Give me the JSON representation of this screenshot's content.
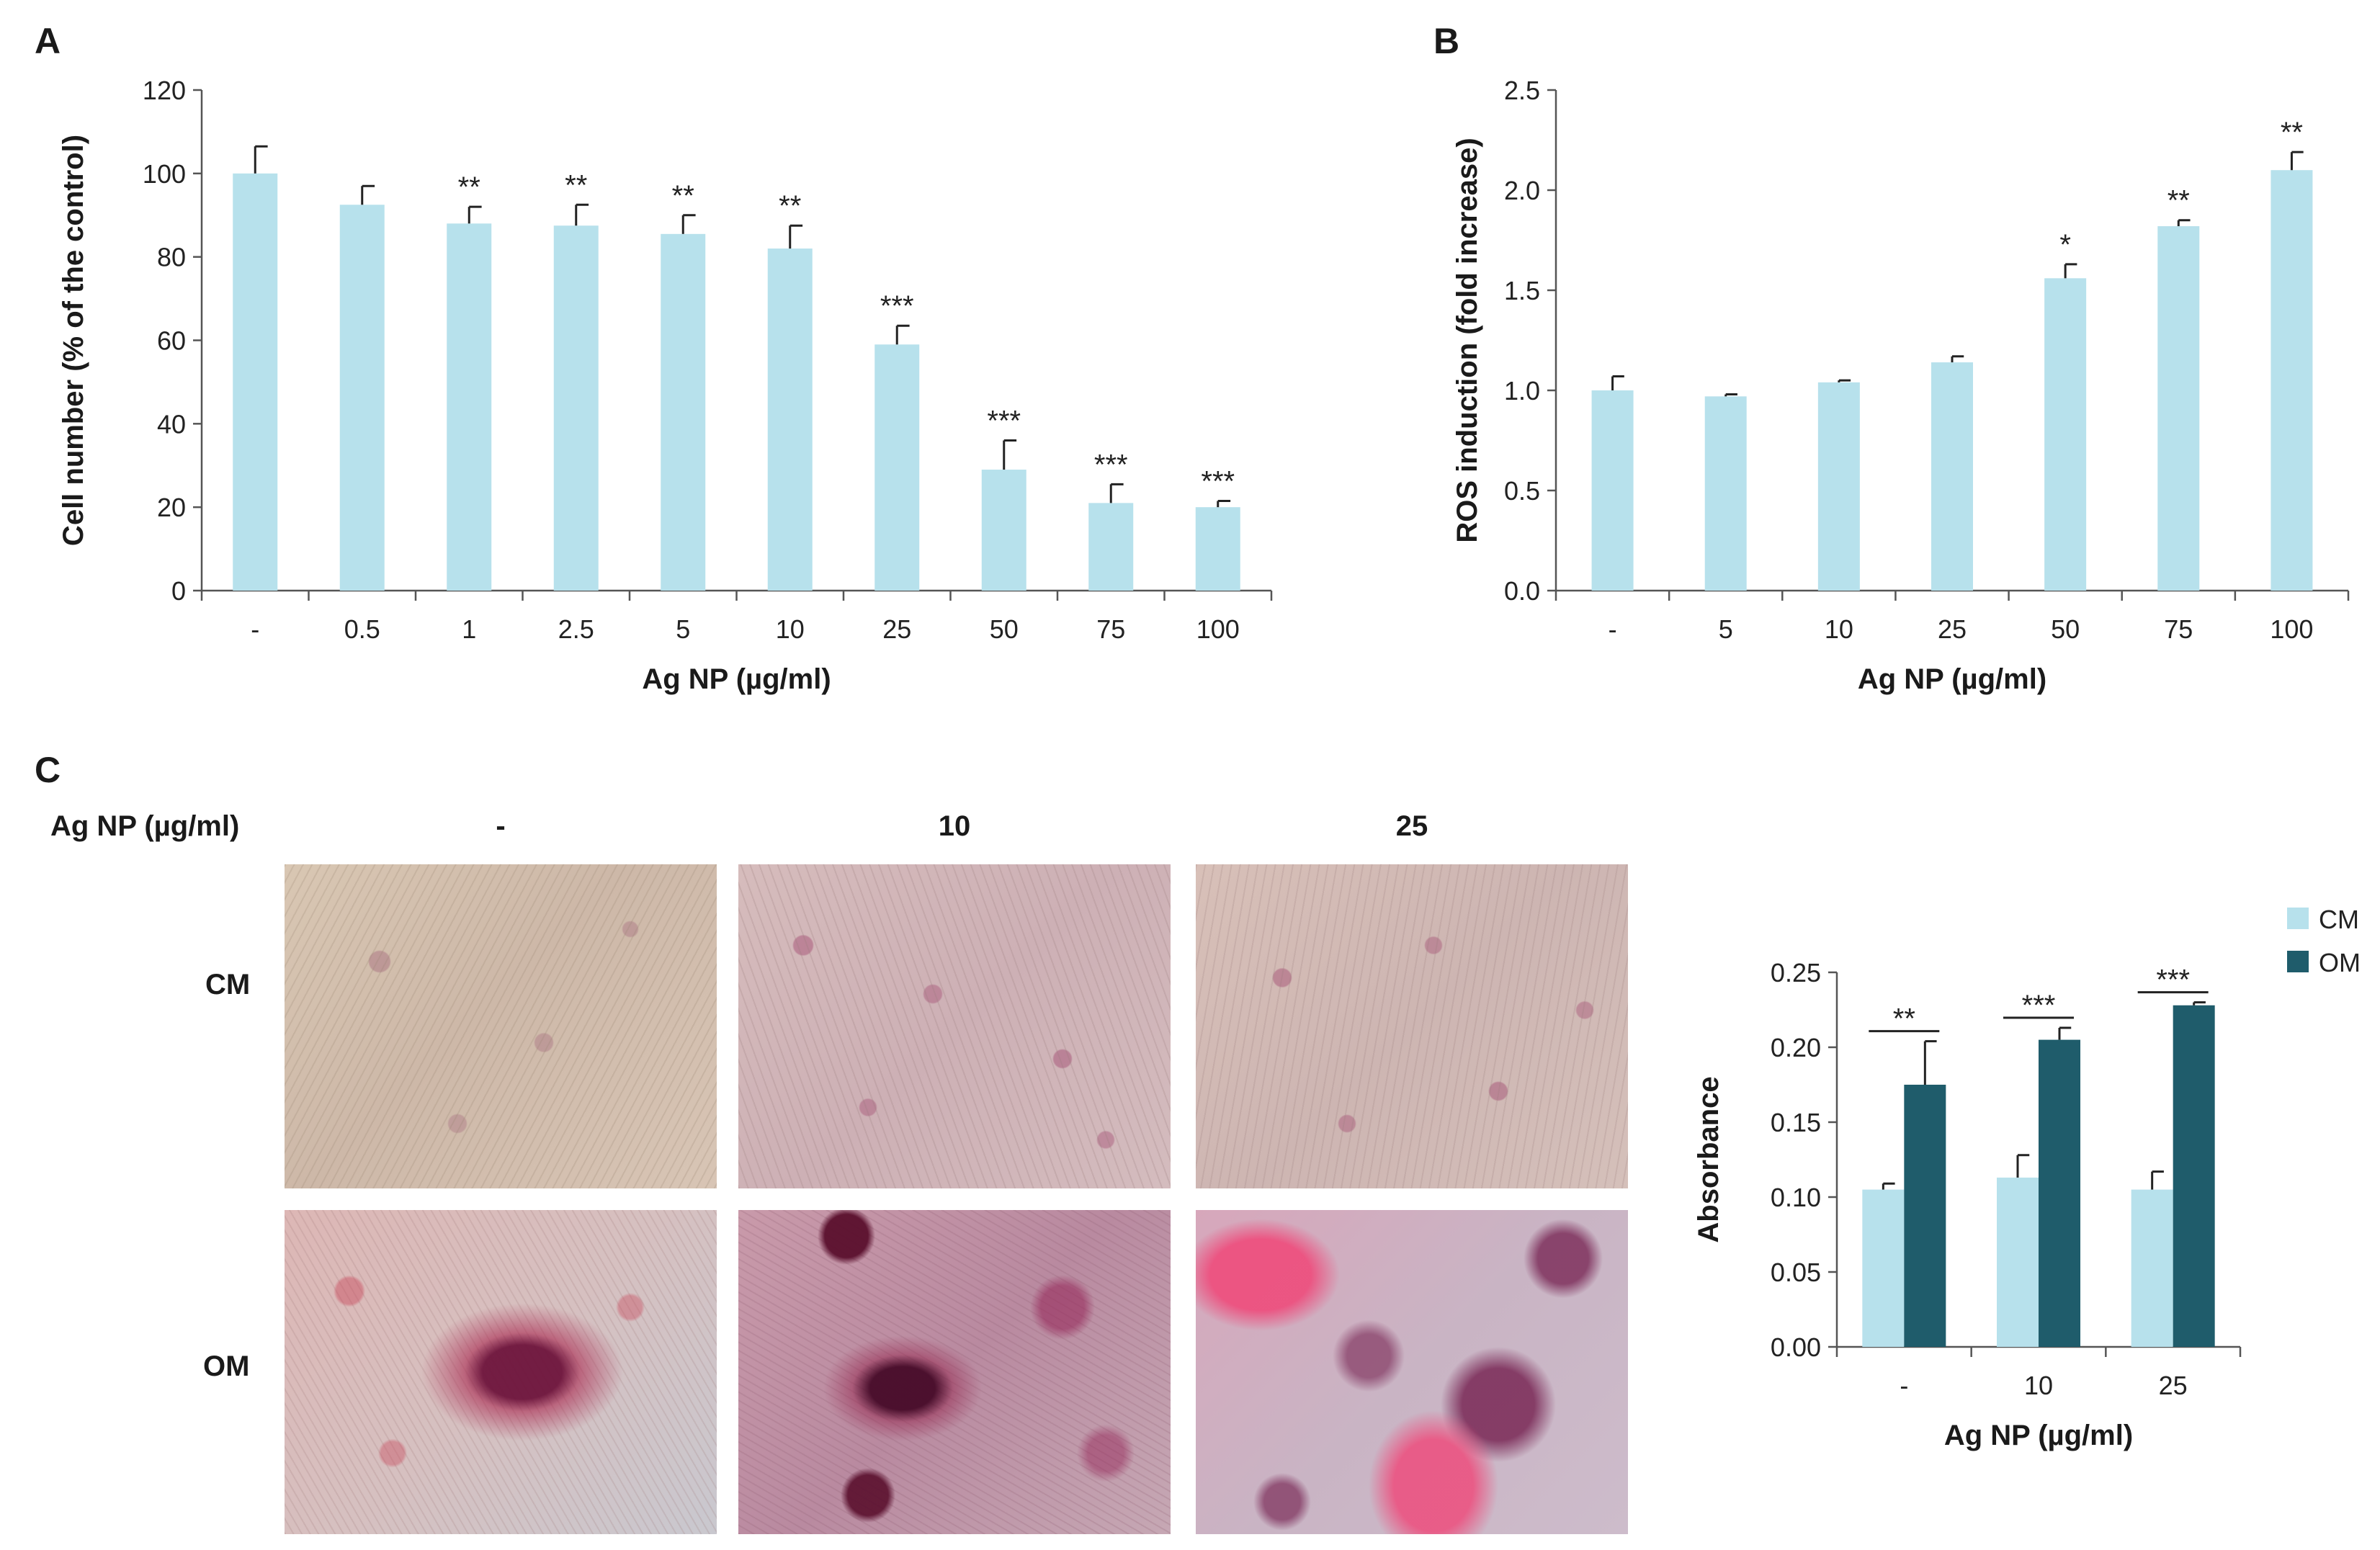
{
  "panel_labels": {
    "a": "A",
    "b": "B",
    "c": "C"
  },
  "panel_c": {
    "treatment_label": "Ag NP (µg/ml)",
    "columns": [
      "-",
      "10",
      "25"
    ],
    "rows": [
      "CM",
      "OM"
    ],
    "micrographs": [
      {
        "row": "CM",
        "col": "-",
        "stain": "faint-pink-fibroblast-field"
      },
      {
        "row": "CM",
        "col": "10",
        "stain": "pink-fibroblast-field"
      },
      {
        "row": "CM",
        "col": "25",
        "stain": "pink-fibroblast-field"
      },
      {
        "row": "OM",
        "col": "-",
        "stain": "red-mineralized-nodule"
      },
      {
        "row": "OM",
        "col": "10",
        "stain": "red-mineralized-nodules-dense"
      },
      {
        "row": "OM",
        "col": "25",
        "stain": "bright-pink-mineralized-patches"
      }
    ]
  },
  "colors": {
    "bar_light": "#b7e1ec",
    "bar_dark": "#1f5c6b",
    "axis": "#555555",
    "text": "#1a1a1a"
  },
  "chart_data": [
    {
      "id": "A",
      "type": "bar",
      "categories": [
        "-",
        "0.5",
        "1",
        "2.5",
        "5",
        "10",
        "25",
        "50",
        "75",
        "100"
      ],
      "series": [
        {
          "values": [
            100,
            92.5,
            88,
            87.5,
            85.5,
            82,
            59,
            29,
            21,
            20
          ],
          "errors": [
            6.5,
            4.5,
            4,
            5,
            4.5,
            5.5,
            4.5,
            7,
            4.5,
            1.5
          ]
        }
      ],
      "significance": [
        "",
        "",
        "**",
        "**",
        "**",
        "**",
        "***",
        "***",
        "***",
        "***"
      ],
      "xlabel": "Ag NP (µg/ml)",
      "ylabel": "Cell number (% of the control)",
      "ylim": [
        0,
        120
      ],
      "yticks": [
        "0",
        "20",
        "40",
        "60",
        "80",
        "100",
        "120"
      ],
      "grid": false
    },
    {
      "id": "B",
      "type": "bar",
      "categories": [
        "-",
        "5",
        "10",
        "25",
        "50",
        "75",
        "100"
      ],
      "series": [
        {
          "values": [
            1.0,
            0.97,
            1.04,
            1.14,
            1.56,
            1.82,
            2.1
          ],
          "errors": [
            0.07,
            0.01,
            0.01,
            0.03,
            0.07,
            0.03,
            0.09
          ]
        }
      ],
      "significance": [
        "",
        "",
        "",
        "",
        "*",
        "**",
        "**"
      ],
      "xlabel": "Ag NP (µg/ml)",
      "ylabel": "ROS induction (fold increase)",
      "ylim": [
        0,
        2.5
      ],
      "yticks": [
        "0.0",
        "0.5",
        "1.0",
        "1.5",
        "2.0",
        "2.5"
      ],
      "grid": false
    },
    {
      "id": "C-absorbance",
      "type": "bar",
      "categories": [
        "-",
        "10",
        "25"
      ],
      "series": [
        {
          "name": "CM",
          "values": [
            0.105,
            0.113,
            0.105
          ],
          "errors": [
            0.004,
            0.015,
            0.012
          ]
        },
        {
          "name": "OM",
          "values": [
            0.175,
            0.205,
            0.228
          ],
          "errors": [
            0.029,
            0.008,
            0.002
          ]
        }
      ],
      "significance": [
        "**",
        "***",
        "***"
      ],
      "xlabel": "Ag NP (µg/ml)",
      "ylabel": "Absorbance",
      "ylim": [
        0,
        0.25
      ],
      "yticks": [
        "0.00",
        "0.05",
        "0.10",
        "0.15",
        "0.20",
        "0.25"
      ],
      "legend_position": "top-right",
      "grid": false
    }
  ]
}
